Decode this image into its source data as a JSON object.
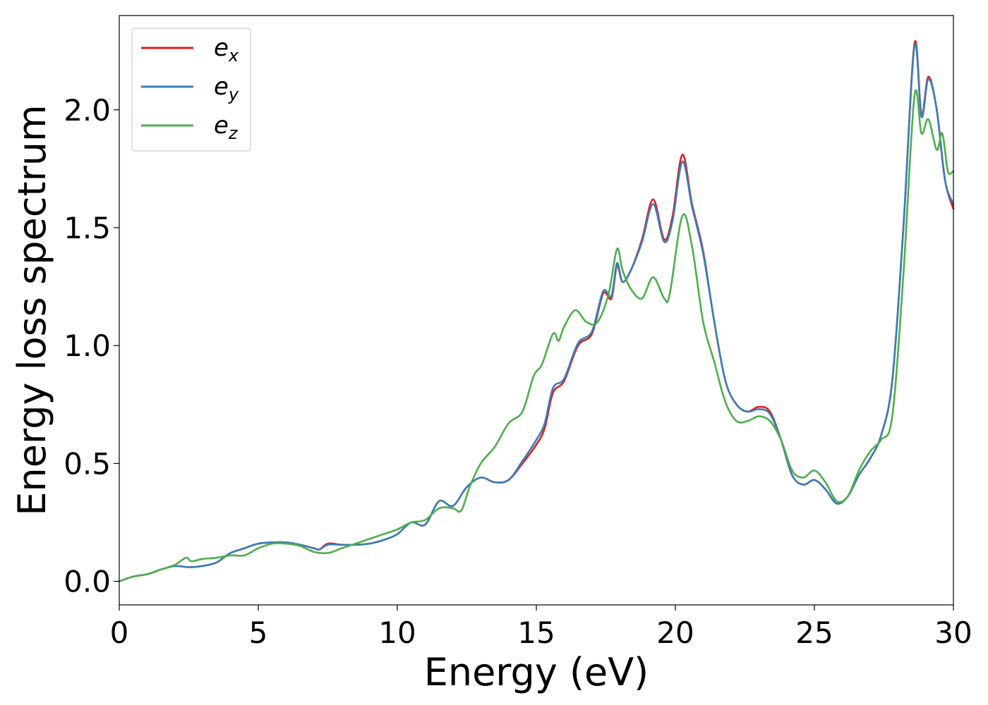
{
  "chart_data": {
    "type": "line",
    "xlabel": "Energy (eV)",
    "ylabel": "Energy loss spectrum",
    "xlim": [
      0,
      30
    ],
    "ylim": [
      -0.1,
      2.4
    ],
    "xticks": [
      0,
      5,
      10,
      15,
      20,
      25,
      30
    ],
    "yticks": [
      0.0,
      0.5,
      1.0,
      1.5,
      2.0
    ],
    "xtick_labels": [
      "0",
      "5",
      "10",
      "15",
      "20",
      "25",
      "30"
    ],
    "ytick_labels": [
      "0.0",
      "0.5",
      "1.0",
      "1.5",
      "2.0"
    ],
    "grid": false,
    "legend_position": "top-left",
    "series": [
      {
        "name": "e_x",
        "name_base": "e",
        "name_sub": "x",
        "color": "#e41a1c",
        "x": [
          0,
          0.5,
          1,
          1.5,
          2,
          2.5,
          3,
          3.5,
          4,
          4.5,
          5,
          5.5,
          6,
          6.5,
          7,
          7.2,
          7.5,
          8,
          8.5,
          9,
          9.5,
          10,
          10.5,
          11,
          11.5,
          12,
          12.5,
          13,
          13.5,
          14,
          14.5,
          15,
          15.3,
          15.6,
          16,
          16.5,
          17,
          17.4,
          17.7,
          17.9,
          18.1,
          18.4,
          18.8,
          19.2,
          19.6,
          19.9,
          20.25,
          20.6,
          21,
          21.4,
          21.8,
          22.2,
          22.6,
          23,
          23.4,
          23.8,
          24.2,
          24.6,
          25,
          25.4,
          25.8,
          26.2,
          26.6,
          27,
          27.4,
          27.8,
          28.2,
          28.6,
          28.85,
          29.1,
          29.4,
          29.7,
          30
        ],
        "y": [
          0.0,
          0.02,
          0.03,
          0.05,
          0.065,
          0.06,
          0.065,
          0.08,
          0.12,
          0.14,
          0.16,
          0.165,
          0.165,
          0.155,
          0.14,
          0.135,
          0.16,
          0.155,
          0.155,
          0.16,
          0.175,
          0.2,
          0.25,
          0.24,
          0.34,
          0.32,
          0.4,
          0.44,
          0.42,
          0.43,
          0.5,
          0.58,
          0.65,
          0.8,
          0.85,
          1.0,
          1.05,
          1.22,
          1.2,
          1.34,
          1.27,
          1.32,
          1.45,
          1.62,
          1.45,
          1.55,
          1.81,
          1.6,
          1.4,
          1.1,
          0.85,
          0.75,
          0.72,
          0.74,
          0.72,
          0.6,
          0.45,
          0.41,
          0.43,
          0.39,
          0.33,
          0.36,
          0.45,
          0.52,
          0.62,
          0.85,
          1.5,
          2.28,
          1.98,
          2.14,
          2.0,
          1.7,
          1.58
        ]
      },
      {
        "name": "e_y",
        "name_base": "e",
        "name_sub": "y",
        "color": "#377eb8",
        "x": [
          0,
          0.5,
          1,
          1.5,
          2,
          2.5,
          3,
          3.5,
          4,
          4.5,
          5,
          5.5,
          6,
          6.5,
          7,
          7.2,
          7.5,
          8,
          8.5,
          9,
          9.5,
          10,
          10.5,
          11,
          11.5,
          12,
          12.5,
          13,
          13.5,
          14,
          14.5,
          15,
          15.3,
          15.6,
          16,
          16.5,
          17,
          17.4,
          17.7,
          17.9,
          18.1,
          18.4,
          18.8,
          19.2,
          19.6,
          19.9,
          20.25,
          20.6,
          21,
          21.4,
          21.8,
          22.2,
          22.6,
          23,
          23.4,
          23.8,
          24.2,
          24.6,
          25,
          25.4,
          25.8,
          26.2,
          26.6,
          27,
          27.4,
          27.8,
          28.2,
          28.6,
          28.85,
          29.1,
          29.4,
          29.7,
          30
        ],
        "y": [
          0.0,
          0.02,
          0.03,
          0.05,
          0.065,
          0.06,
          0.065,
          0.08,
          0.12,
          0.14,
          0.16,
          0.165,
          0.165,
          0.155,
          0.14,
          0.135,
          0.155,
          0.155,
          0.155,
          0.16,
          0.175,
          0.2,
          0.25,
          0.24,
          0.34,
          0.32,
          0.4,
          0.44,
          0.42,
          0.43,
          0.51,
          0.6,
          0.67,
          0.82,
          0.86,
          1.01,
          1.06,
          1.23,
          1.21,
          1.35,
          1.27,
          1.32,
          1.44,
          1.6,
          1.44,
          1.53,
          1.78,
          1.59,
          1.39,
          1.1,
          0.85,
          0.75,
          0.72,
          0.73,
          0.71,
          0.6,
          0.45,
          0.41,
          0.43,
          0.39,
          0.33,
          0.36,
          0.45,
          0.52,
          0.62,
          0.85,
          1.5,
          2.27,
          1.97,
          2.13,
          2.0,
          1.7,
          1.6
        ]
      },
      {
        "name": "e_z",
        "name_base": "e",
        "name_sub": "z",
        "color": "#4daf4a",
        "x": [
          0,
          0.5,
          1,
          1.5,
          2,
          2.4,
          2.6,
          3,
          3.5,
          4,
          4.5,
          5,
          5.5,
          6,
          6.5,
          7,
          7.5,
          8,
          8.5,
          9,
          9.5,
          10,
          10.5,
          11,
          11.5,
          12,
          12.3,
          12.6,
          13,
          13.5,
          14,
          14.5,
          14.9,
          15.2,
          15.6,
          15.8,
          16,
          16.4,
          16.8,
          17.2,
          17.6,
          17.9,
          18.1,
          18.4,
          18.8,
          19.2,
          19.6,
          19.8,
          20.25,
          20.6,
          21,
          21.4,
          21.8,
          22.2,
          22.6,
          23,
          23.4,
          23.8,
          24.2,
          24.6,
          25,
          25.4,
          25.8,
          26.2,
          26.6,
          27,
          27.4,
          27.8,
          28.2,
          28.6,
          28.85,
          29.1,
          29.4,
          29.6,
          29.8,
          30
        ],
        "y": [
          0.0,
          0.02,
          0.03,
          0.05,
          0.07,
          0.1,
          0.085,
          0.095,
          0.1,
          0.11,
          0.11,
          0.14,
          0.16,
          0.16,
          0.15,
          0.125,
          0.12,
          0.14,
          0.16,
          0.18,
          0.2,
          0.22,
          0.25,
          0.26,
          0.31,
          0.31,
          0.3,
          0.4,
          0.5,
          0.57,
          0.67,
          0.72,
          0.87,
          0.92,
          1.05,
          1.02,
          1.08,
          1.15,
          1.1,
          1.1,
          1.22,
          1.41,
          1.32,
          1.24,
          1.2,
          1.29,
          1.2,
          1.22,
          1.55,
          1.42,
          1.1,
          0.93,
          0.76,
          0.68,
          0.68,
          0.7,
          0.68,
          0.6,
          0.47,
          0.44,
          0.47,
          0.42,
          0.34,
          0.36,
          0.47,
          0.55,
          0.6,
          0.7,
          1.3,
          2.06,
          1.9,
          1.96,
          1.83,
          1.9,
          1.74,
          1.74
        ]
      }
    ]
  }
}
